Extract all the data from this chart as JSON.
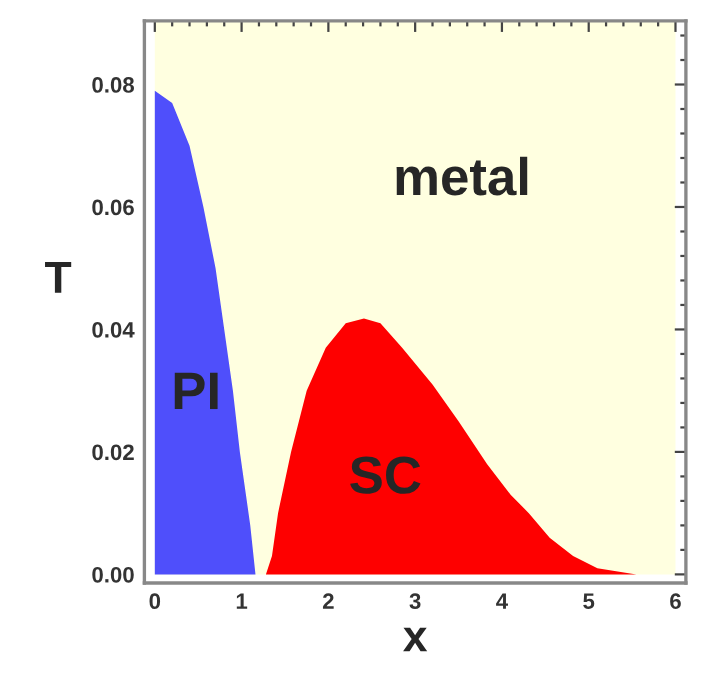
{
  "chart_data": {
    "type": "area",
    "xlabel": "x",
    "ylabel": "T",
    "xlim": [
      -0.12,
      6.12
    ],
    "ylim": [
      -0.0014,
      0.0904
    ],
    "xticks": [
      0,
      1,
      2,
      3,
      4,
      5,
      6
    ],
    "yticks": [
      {
        "value": 0,
        "label": "0.00"
      },
      {
        "value": 0.02,
        "label": "0.02"
      },
      {
        "value": 0.04,
        "label": "0.04"
      },
      {
        "value": 0.06,
        "label": "0.06"
      },
      {
        "value": 0.08,
        "label": "0.08"
      }
    ],
    "bands": [
      {
        "axis": "x",
        "from": 0,
        "to": 6,
        "label": "metal",
        "color": "#ffffe0"
      }
    ],
    "grid": false,
    "series": [
      {
        "name": "PI",
        "color": "#4f4ffb",
        "x": [
          0,
          0.2,
          0.4,
          0.56,
          0.7,
          0.8,
          0.9,
          0.98,
          1.05,
          1.1,
          1.16
        ],
        "values": [
          0.079,
          0.077,
          0.07,
          0.06,
          0.05,
          0.04,
          0.03,
          0.02,
          0.013,
          0.008,
          0
        ]
      },
      {
        "name": "SC",
        "color": "#fe0000",
        "x": [
          1.28,
          1.35,
          1.42,
          1.57,
          1.75,
          1.97,
          2.2,
          2.41,
          2.6,
          2.85,
          3.2,
          3.5,
          3.83,
          4.1,
          4.31,
          4.55,
          4.82,
          5.1,
          5.55
        ],
        "values": [
          0,
          0.003,
          0.01,
          0.02,
          0.03,
          0.037,
          0.041,
          0.0418,
          0.041,
          0.037,
          0.031,
          0.025,
          0.018,
          0.013,
          0.01,
          0.006,
          0.003,
          0.001,
          0
        ]
      }
    ]
  }
}
